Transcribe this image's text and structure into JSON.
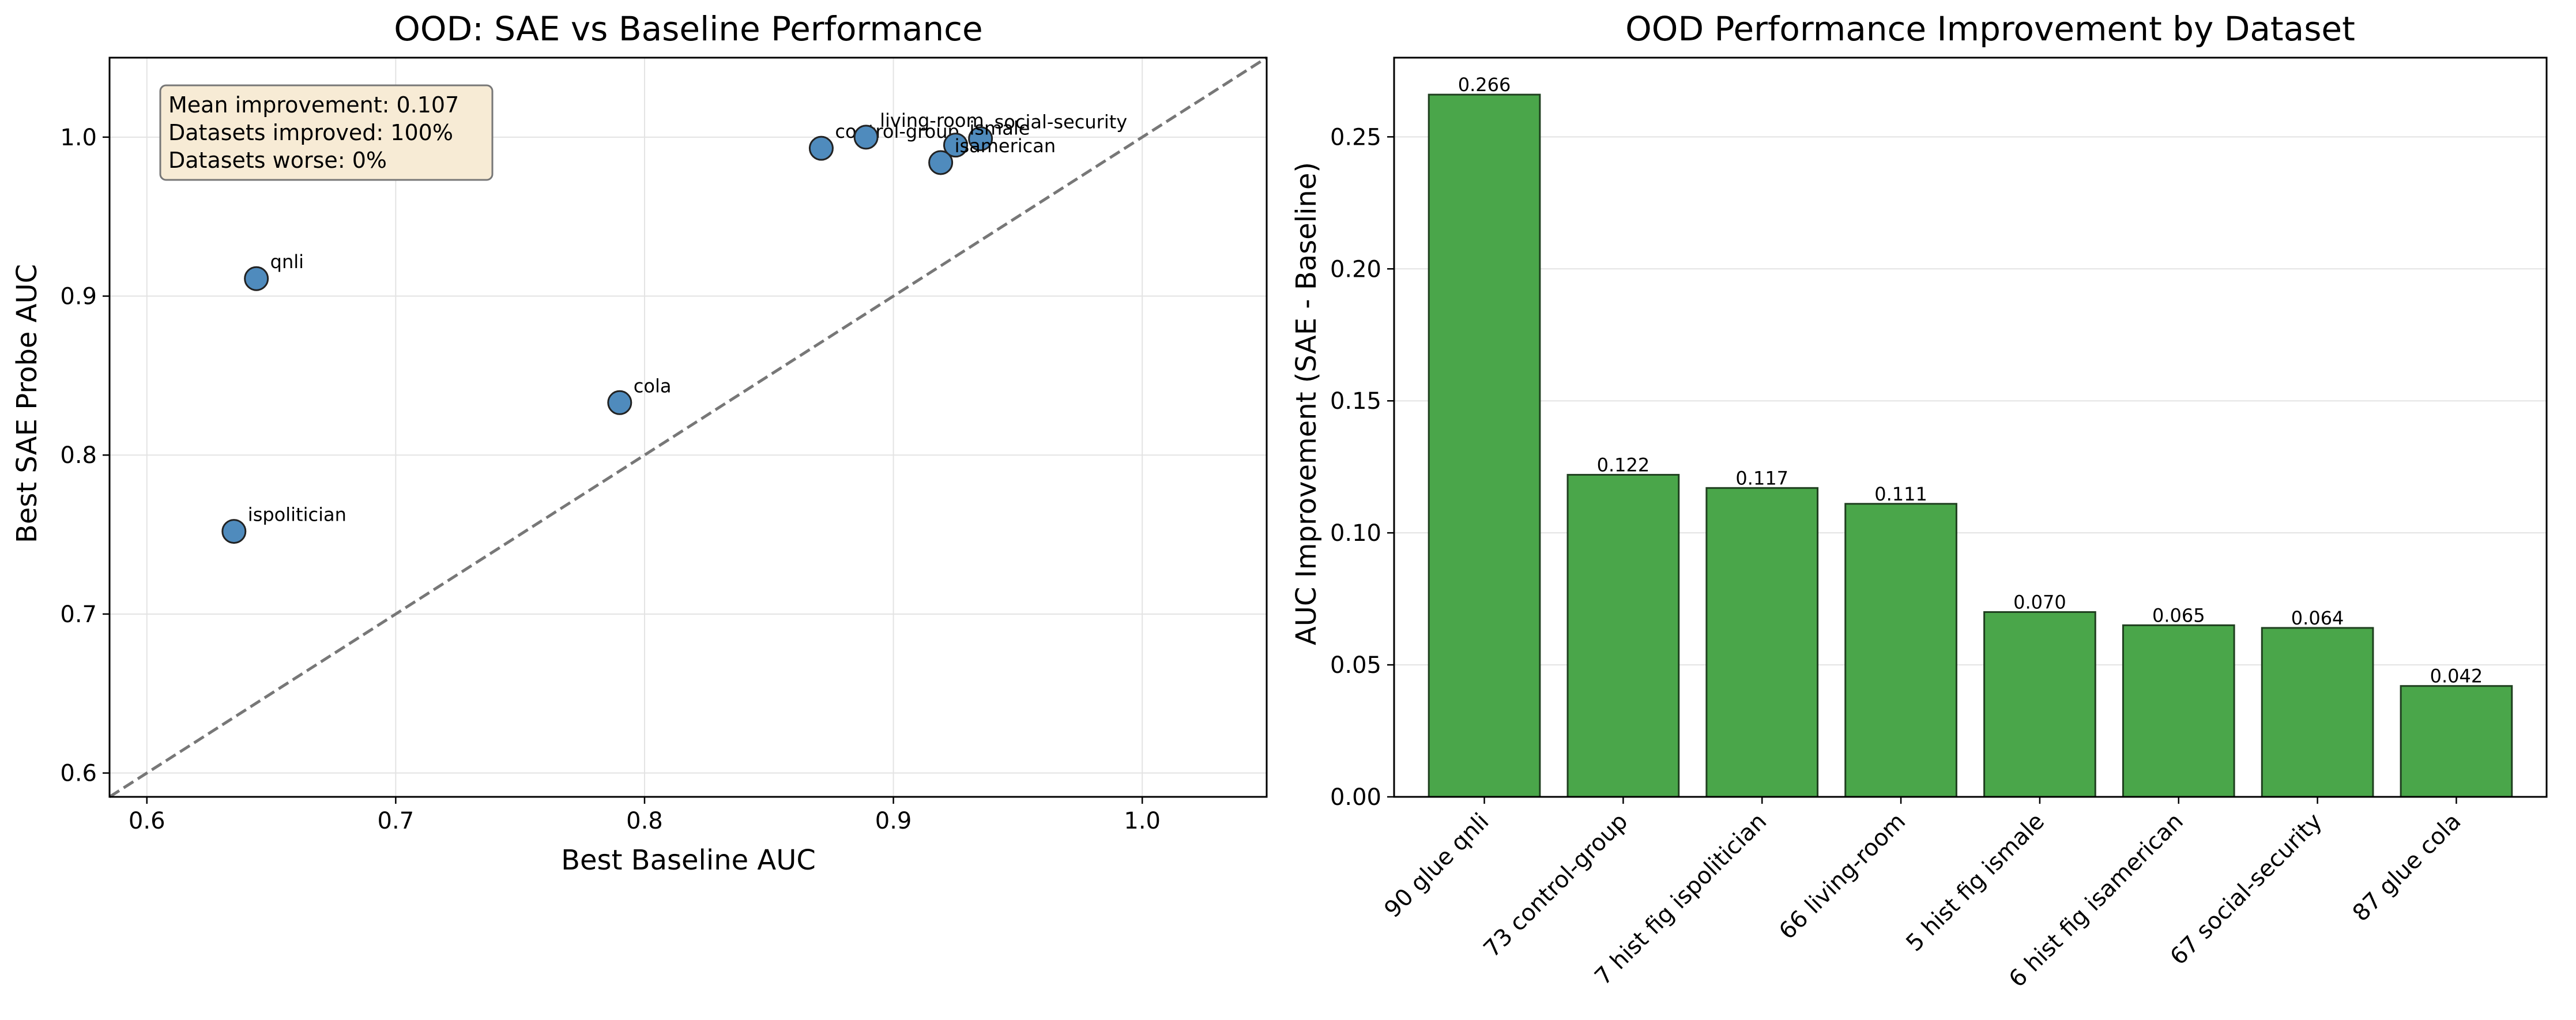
{
  "chart_data": [
    {
      "type": "scatter",
      "title": "OOD: SAE vs Baseline Performance",
      "xlabel": "Best Baseline AUC",
      "ylabel": "Best SAE Probe AUC",
      "xlim": [
        0.585,
        1.05
      ],
      "ylim": [
        0.585,
        1.05
      ],
      "xticks": [
        0.6,
        0.7,
        0.8,
        0.9,
        1.0
      ],
      "xtick_labels": [
        "0.6",
        "0.7",
        "0.8",
        "0.9",
        "1.0"
      ],
      "yticks": [
        0.6,
        0.7,
        0.8,
        0.9,
        1.0
      ],
      "ytick_labels": [
        "0.6",
        "0.7",
        "0.8",
        "0.9",
        "1.0"
      ],
      "grid": true,
      "diagonal": true,
      "points": [
        {
          "label": "qnli",
          "x": 0.644,
          "y": 0.911
        },
        {
          "label": "cola",
          "x": 0.79,
          "y": 0.833
        },
        {
          "label": "ispolitician",
          "x": 0.635,
          "y": 0.752
        },
        {
          "label": "control-group",
          "x": 0.871,
          "y": 0.993
        },
        {
          "label": "living-room",
          "x": 0.889,
          "y": 1.0
        },
        {
          "label": "social-security",
          "x": 0.935,
          "y": 0.999
        },
        {
          "label": "ismale",
          "x": 0.925,
          "y": 0.995
        },
        {
          "label": "isamerican",
          "x": 0.919,
          "y": 0.984
        }
      ],
      "stats_box": {
        "line1": "Mean improvement: 0.107",
        "line2": "Datasets improved: 100%",
        "line3": "Datasets worse: 0%"
      },
      "colors": {
        "point": "#4f8bbd",
        "box_fill": "#f7ebd5"
      }
    },
    {
      "type": "bar",
      "title": "OOD Performance Improvement by Dataset",
      "xlabel": "",
      "ylabel": "AUC Improvement (SAE - Baseline)",
      "ylim": [
        0,
        0.28
      ],
      "yticks": [
        0.0,
        0.05,
        0.1,
        0.15,
        0.2,
        0.25
      ],
      "ytick_labels": [
        "0.00",
        "0.05",
        "0.10",
        "0.15",
        "0.20",
        "0.25"
      ],
      "grid": true,
      "categories": [
        "90 glue qnli",
        "73 control-group",
        "7 hist fig ispolitician",
        "66 living-room",
        "5 hist fig ismale",
        "6 hist fig isamerican",
        "67 social-security",
        "87 glue cola"
      ],
      "values": [
        0.266,
        0.122,
        0.117,
        0.111,
        0.07,
        0.065,
        0.064,
        0.042
      ],
      "value_labels": [
        "0.266",
        "0.122",
        "0.117",
        "0.111",
        "0.070",
        "0.065",
        "0.064",
        "0.042"
      ],
      "colors": {
        "bar": "#4aa64a"
      }
    }
  ]
}
